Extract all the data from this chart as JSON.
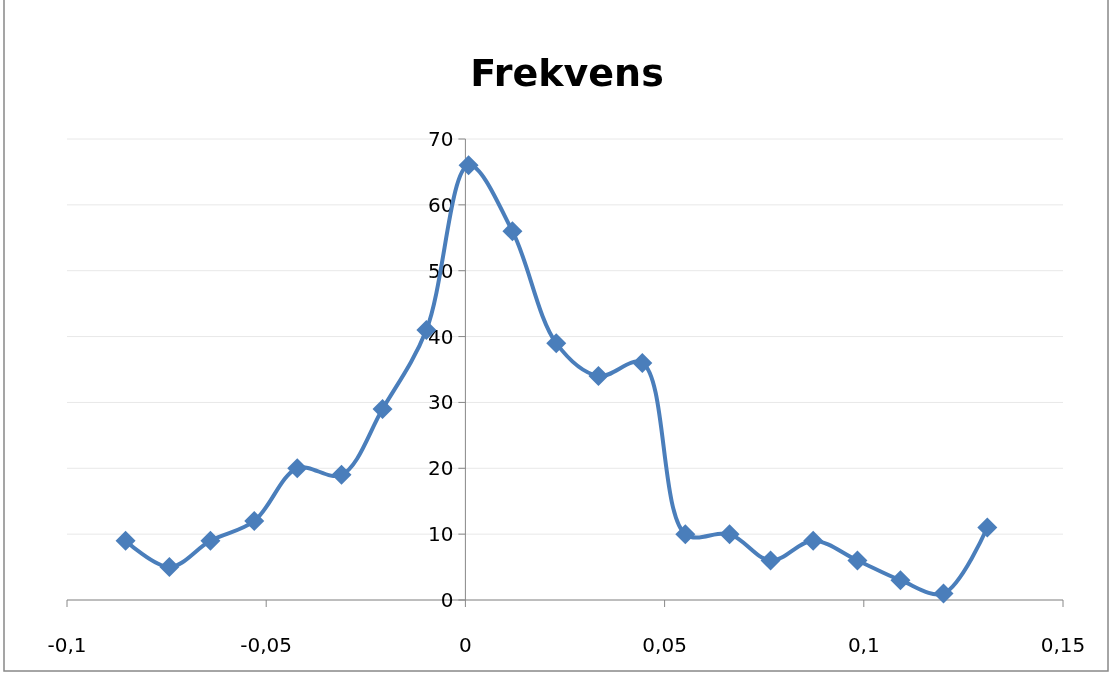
{
  "chart_data": {
    "type": "line",
    "title": "Frekvens",
    "x": [
      -0.0853,
      -0.0743,
      -0.064,
      -0.053,
      -0.0422,
      -0.0311,
      -0.0208,
      -0.0098,
      0.0008,
      0.0118,
      0.0228,
      0.0334,
      0.0444,
      0.0552,
      0.0663,
      0.0766,
      0.0873,
      0.0984,
      0.1092,
      0.12,
      0.131
    ],
    "series": [
      {
        "color": "#4a7ebb",
        "values": [
          9,
          5,
          9,
          12,
          20,
          19,
          29,
          41,
          66,
          56,
          39,
          34,
          36,
          10,
          10,
          6,
          9,
          6,
          3,
          1,
          11
        ]
      }
    ],
    "xlim": [
      -0.1,
      0.15
    ],
    "xticks": [
      {
        "value": -0.1,
        "label": "-0,1"
      },
      {
        "value": -0.05,
        "label": "-0,05"
      },
      0,
      {
        "value": 0.05,
        "label": "0,05"
      },
      {
        "value": 0.1,
        "label": "0,1"
      },
      {
        "value": 0.15,
        "label": "0,15"
      }
    ],
    "ylim": [
      0,
      70
    ],
    "yticks": [
      0,
      10,
      20,
      30,
      40,
      50,
      60,
      70
    ],
    "grid": "y",
    "marker": "diamond",
    "line_style": "solid"
  }
}
